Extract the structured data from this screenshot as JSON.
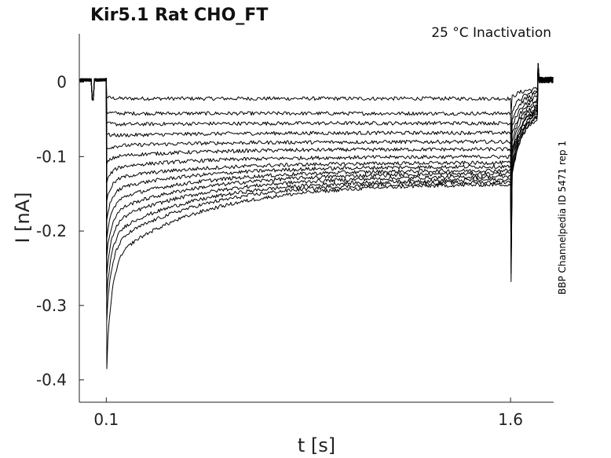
{
  "chart_data": {
    "type": "line",
    "title": "Kir5.1  Rat  CHO_FT",
    "subtitle": "25 °C  Inactivation",
    "xlabel": "t [s]",
    "ylabel": "I [nA]",
    "side_label": "BBP Channelpedia ID 5471 rep 1",
    "xlim": [
      0.0,
      1.76
    ],
    "ylim": [
      -0.43,
      0.065
    ],
    "xticks": [
      0.1,
      1.6
    ],
    "xtick_labels": [
      "0.1",
      "1.6"
    ],
    "yticks": [
      0,
      -0.1,
      -0.2,
      -0.3,
      -0.4
    ],
    "ytick_labels": [
      "0",
      "-0.1",
      "-0.2",
      "-0.3",
      "-0.4"
    ],
    "grid": false,
    "line_color": "#000000",
    "pulse_start": 0.1,
    "pulse_end": 1.6,
    "series": [
      {
        "values": {
          "peak": -0.02,
          "start": -0.022,
          "end": -0.022,
          "tail": -0.008
        }
      },
      {
        "values": {
          "peak": -0.04,
          "start": -0.042,
          "end": -0.042,
          "tail": -0.01
        }
      },
      {
        "values": {
          "peak": -0.055,
          "start": -0.057,
          "end": -0.055,
          "tail": -0.012
        }
      },
      {
        "values": {
          "peak": -0.07,
          "start": -0.072,
          "end": -0.068,
          "tail": -0.015
        }
      },
      {
        "values": {
          "peak": -0.09,
          "start": -0.086,
          "end": -0.08,
          "tail": -0.018
        }
      },
      {
        "values": {
          "peak": -0.11,
          "start": -0.1,
          "end": -0.09,
          "tail": -0.02
        }
      },
      {
        "values": {
          "peak": -0.135,
          "start": -0.115,
          "end": -0.1,
          "tail": -0.024
        }
      },
      {
        "values": {
          "peak": -0.16,
          "start": -0.13,
          "end": -0.108,
          "tail": -0.028
        }
      },
      {
        "values": {
          "peak": -0.185,
          "start": -0.145,
          "end": -0.113,
          "tail": -0.03
        }
      },
      {
        "values": {
          "peak": -0.21,
          "start": -0.16,
          "end": -0.118,
          "tail": -0.032
        }
      },
      {
        "values": {
          "peak": -0.235,
          "start": -0.175,
          "end": -0.122,
          "tail": -0.034
        }
      },
      {
        "values": {
          "peak": -0.26,
          "start": -0.19,
          "end": -0.126,
          "tail": -0.036
        }
      },
      {
        "values": {
          "peak": -0.29,
          "start": -0.205,
          "end": -0.13,
          "tail": -0.038
        }
      },
      {
        "values": {
          "peak": -0.32,
          "start": -0.22,
          "end": -0.133,
          "tail": -0.04
        }
      },
      {
        "values": {
          "peak": -0.385,
          "start": -0.24,
          "end": -0.136,
          "tail": -0.042
        }
      }
    ]
  }
}
